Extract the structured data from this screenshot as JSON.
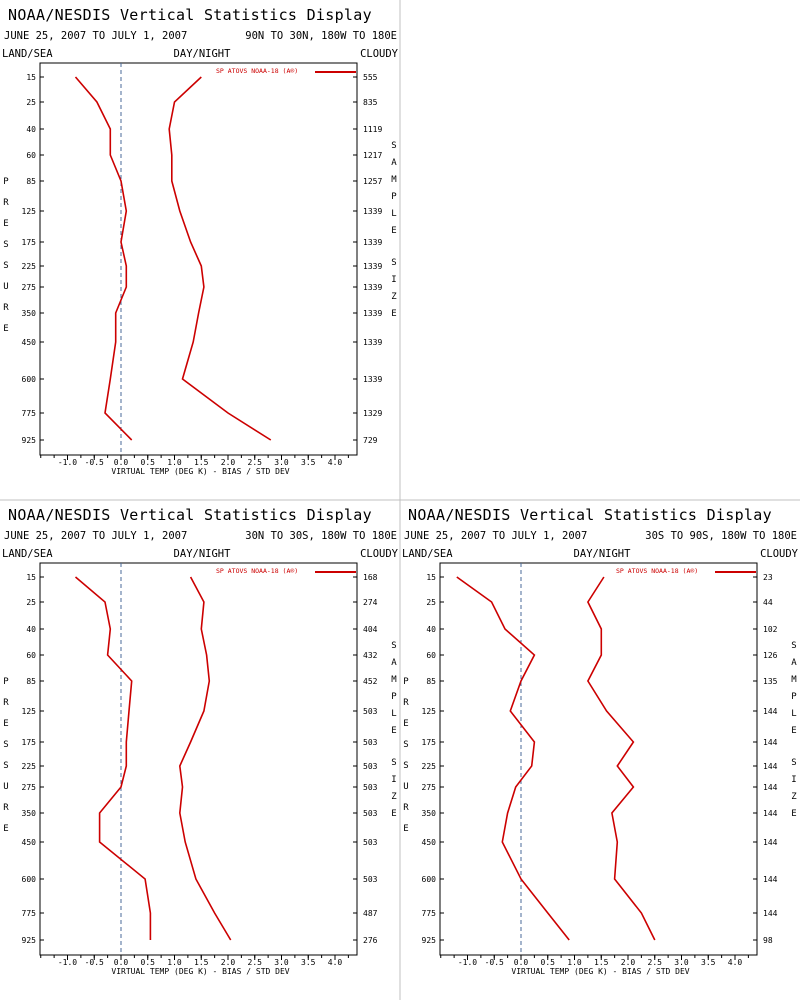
{
  "chart_data": [
    {
      "type": "line",
      "title": "NOAA/NESDIS Vertical Statistics Display",
      "date_range": "JUNE 25, 2007 TO JULY 1, 2007",
      "region": "90N TO 30N, 180W TO 180E",
      "header_left": "LAND/SEA",
      "header_center": "DAY/NIGHT",
      "header_right": "CLOUDY",
      "left_label": "PRESSURE",
      "right_label": "SAMPLE SIZE",
      "xlabel": "VIRTUAL TEMP (DEG K) - BIAS / STD DEV",
      "xlim": [
        -1.5,
        4.5
      ],
      "x_ticks": [
        "-1.0",
        "-0.5",
        "0.0",
        "0.5",
        "1.0",
        "1.5",
        "2.0",
        "2.5",
        "3.0",
        "3.5",
        "4.0"
      ],
      "legend": "SP ATOVS NOAA-18 (A®)",
      "pressure_levels": [
        15,
        25,
        40,
        60,
        85,
        125,
        175,
        225,
        275,
        350,
        450,
        600,
        775,
        925
      ],
      "sample_sizes": [
        555,
        835,
        1119,
        1217,
        1257,
        1339,
        1339,
        1339,
        1339,
        1339,
        1339,
        1339,
        1329,
        729
      ],
      "series": [
        {
          "values": [
            -0.85,
            -0.45,
            -0.2,
            -0.2,
            0.0,
            0.1,
            0.0,
            0.1,
            0.1,
            -0.1,
            -0.1,
            -0.2,
            -0.3,
            0.2
          ]
        },
        {
          "values": [
            1.5,
            1.0,
            0.9,
            0.95,
            0.95,
            1.1,
            1.3,
            1.5,
            1.55,
            1.45,
            1.35,
            1.15,
            2.0,
            2.8
          ]
        }
      ]
    },
    {
      "type": "line",
      "title": "NOAA/NESDIS Vertical Statistics Display",
      "date_range": "JUNE 25, 2007 TO JULY 1, 2007",
      "region": "30N TO 30S, 180W TO 180E",
      "header_left": "LAND/SEA",
      "header_center": "DAY/NIGHT",
      "header_right": "CLOUDY",
      "left_label": "PRESSURE",
      "right_label": "SAMPLE SIZE",
      "xlabel": "VIRTUAL TEMP (DEG K) - BIAS / STD DEV",
      "xlim": [
        -1.5,
        4.5
      ],
      "x_ticks": [
        "-1.0",
        "-0.5",
        "0.0",
        "0.5",
        "1.0",
        "1.5",
        "2.0",
        "2.5",
        "3.0",
        "3.5",
        "4.0"
      ],
      "legend": "SP ATOVS NOAA-18 (A®)",
      "pressure_levels": [
        15,
        25,
        40,
        60,
        85,
        125,
        175,
        225,
        275,
        350,
        450,
        600,
        775,
        925
      ],
      "sample_sizes": [
        168,
        274,
        404,
        432,
        452,
        503,
        503,
        503,
        503,
        503,
        503,
        503,
        487,
        276
      ],
      "series": [
        {
          "values": [
            -0.85,
            -0.3,
            -0.2,
            -0.25,
            0.2,
            0.15,
            0.1,
            0.1,
            0.0,
            -0.4,
            -0.4,
            0.45,
            0.55,
            0.55
          ]
        },
        {
          "values": [
            1.3,
            1.55,
            1.5,
            1.6,
            1.65,
            1.55,
            1.3,
            1.1,
            1.15,
            1.1,
            1.2,
            1.4,
            1.75,
            2.05
          ]
        }
      ]
    },
    {
      "type": "line",
      "title": "NOAA/NESDIS Vertical Statistics Display",
      "date_range": "JUNE 25, 2007 TO JULY 1, 2007",
      "region": "30S TO 90S, 180W TO 180E",
      "header_left": "LAND/SEA",
      "header_center": "DAY/NIGHT",
      "header_right": "CLOUDY",
      "left_label": "PRESSURE",
      "right_label": "SAMPLE SIZE",
      "xlabel": "VIRTUAL TEMP (DEG K) - BIAS / STD DEV",
      "xlim": [
        -1.5,
        4.5
      ],
      "x_ticks": [
        "-1.0",
        "-0.5",
        "0.0",
        "0.5",
        "1.0",
        "1.5",
        "2.0",
        "2.5",
        "3.0",
        "3.5",
        "4.0"
      ],
      "legend": "SP ATOVS NOAA-18 (A®)",
      "pressure_levels": [
        15,
        25,
        40,
        60,
        85,
        125,
        175,
        225,
        275,
        350,
        450,
        600,
        775,
        925
      ],
      "sample_sizes": [
        23,
        44,
        102,
        126,
        135,
        144,
        144,
        144,
        144,
        144,
        144,
        144,
        144,
        98
      ],
      "series": [
        {
          "values": [
            -1.2,
            -0.55,
            -0.3,
            0.25,
            0.0,
            -0.2,
            0.25,
            0.2,
            -0.1,
            -0.25,
            -0.35,
            0.0,
            0.5,
            0.9
          ]
        },
        {
          "values": [
            1.55,
            1.25,
            1.5,
            1.5,
            1.25,
            1.6,
            2.1,
            1.8,
            2.1,
            1.7,
            1.8,
            1.75,
            2.25,
            2.5
          ]
        }
      ]
    }
  ],
  "colors": {
    "series": "#cc0000",
    "axis": "#000000",
    "zero_line": "#4a6a9a",
    "divider": "#c0c0c0"
  }
}
